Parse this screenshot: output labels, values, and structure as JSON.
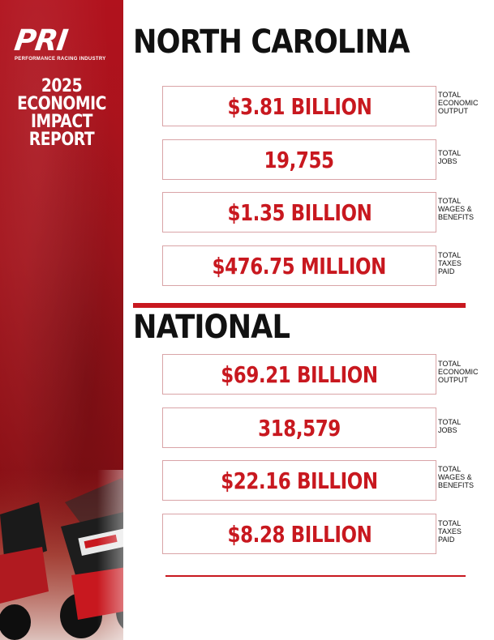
{
  "brand": {
    "logo_text": "PRI",
    "tagline": "PERFORMANCE RACING INDUSTRY",
    "report_lines": [
      "2025",
      "ECONOMIC",
      "IMPACT",
      "REPORT"
    ],
    "accent_color": "#c8181f"
  },
  "sections": [
    {
      "title": "NORTH CAROLINA",
      "stats": [
        {
          "value": "$3.81 BILLION",
          "label_lines": [
            "TOTAL",
            "ECONOMIC",
            "OUTPUT"
          ]
        },
        {
          "value": "19,755",
          "label_lines": [
            "TOTAL",
            "JOBS"
          ]
        },
        {
          "value": "$1.35 BILLION",
          "label_lines": [
            "TOTAL",
            "WAGES &",
            "BENEFITS"
          ]
        },
        {
          "value": "$476.75 MILLION",
          "label_lines": [
            "TOTAL",
            "TAXES",
            "PAID"
          ]
        }
      ]
    },
    {
      "title": "NATIONAL",
      "stats": [
        {
          "value": "$69.21 BILLION",
          "label_lines": [
            "TOTAL",
            "ECONOMIC",
            "OUTPUT"
          ]
        },
        {
          "value": "318,579",
          "label_lines": [
            "TOTAL",
            "JOBS"
          ]
        },
        {
          "value": "$22.16 BILLION",
          "label_lines": [
            "TOTAL",
            "WAGES &",
            "BENEFITS"
          ]
        },
        {
          "value": "$8.28 BILLION",
          "label_lines": [
            "TOTAL",
            "TAXES",
            "PAID"
          ]
        }
      ]
    }
  ]
}
